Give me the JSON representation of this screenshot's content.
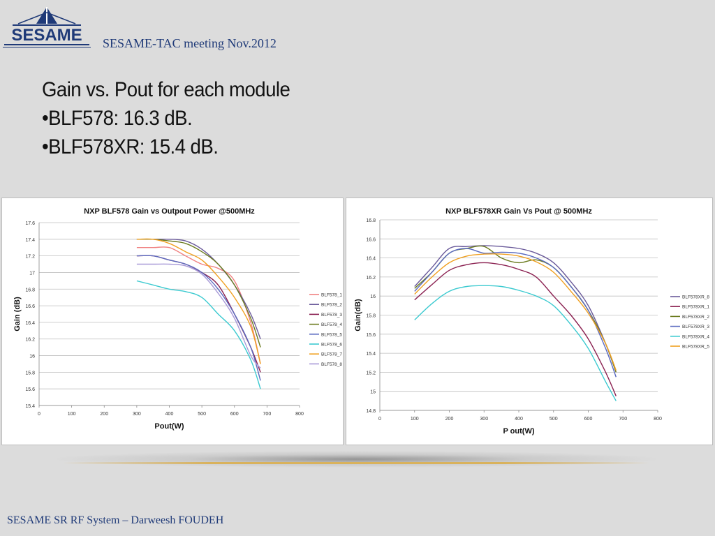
{
  "header": {
    "logo_text": "SESAME",
    "meeting": "SESAME-TAC meeting Nov.2012"
  },
  "bullets": [
    "Gain vs. Pout for each module",
    "•BLF578: 16.3 dB.",
    "•BLF578XR: 15.4 dB."
  ],
  "footer": "SESAME SR RF System – Darweesh FOUDEH",
  "chart_data": [
    {
      "type": "line",
      "title": "NXP BLF578  Gain vs Outpout Power  @500MHz",
      "xlabel": "Pout(W)",
      "ylabel": "Gain (dB)",
      "xlim": [
        0,
        800
      ],
      "ylim": [
        15.4,
        17.6
      ],
      "xticks": [
        0,
        100,
        200,
        300,
        400,
        500,
        600,
        700,
        800
      ],
      "yticks": [
        15.4,
        15.6,
        15.8,
        16,
        16.2,
        16.4,
        16.6,
        16.8,
        17,
        17.2,
        17.4,
        17.6
      ],
      "grid": "horizontal",
      "legend_position": "right",
      "series": [
        {
          "name": "BLF578_1",
          "color": "#f08080",
          "x": [
            300,
            350,
            400,
            450,
            500,
            550,
            600,
            650,
            680
          ],
          "y": [
            17.3,
            17.3,
            17.3,
            17.2,
            17.1,
            17.05,
            16.9,
            16.4,
            15.9
          ]
        },
        {
          "name": "BLF578_2",
          "color": "#6a5a9a",
          "x": [
            300,
            350,
            400,
            450,
            500,
            550,
            600,
            650,
            680
          ],
          "y": [
            17.4,
            17.4,
            17.4,
            17.38,
            17.28,
            17.1,
            16.85,
            16.5,
            16.2
          ]
        },
        {
          "name": "BLF578_3",
          "color": "#8b2252",
          "x": [
            300,
            350,
            400,
            450,
            500,
            550,
            600,
            650,
            680
          ],
          "y": [
            17.2,
            17.2,
            17.15,
            17.1,
            17.0,
            16.85,
            16.5,
            16.1,
            15.8
          ]
        },
        {
          "name": "BLF578_4",
          "color": "#6b7b1f",
          "x": [
            300,
            350,
            400,
            450,
            500,
            550,
            600,
            650,
            680
          ],
          "y": [
            17.4,
            17.4,
            17.38,
            17.35,
            17.25,
            17.1,
            16.85,
            16.45,
            16.1
          ]
        },
        {
          "name": "BLF578_5",
          "color": "#5a6ac0",
          "x": [
            300,
            350,
            400,
            450,
            500,
            550,
            600,
            650,
            680
          ],
          "y": [
            17.2,
            17.2,
            17.15,
            17.1,
            17.0,
            16.8,
            16.5,
            16.1,
            15.7
          ]
        },
        {
          "name": "BLF578_6",
          "color": "#3ccad0",
          "x": [
            300,
            350,
            400,
            450,
            500,
            550,
            600,
            650,
            680
          ],
          "y": [
            16.9,
            16.85,
            16.8,
            16.77,
            16.7,
            16.5,
            16.3,
            15.95,
            15.6
          ]
        },
        {
          "name": "BLF578_7",
          "color": "#f0a020",
          "x": [
            300,
            350,
            400,
            450,
            500,
            550,
            600,
            650,
            680
          ],
          "y": [
            17.4,
            17.4,
            17.35,
            17.25,
            17.15,
            16.95,
            16.7,
            16.35,
            15.9
          ]
        },
        {
          "name": "BLF578_8",
          "color": "#a89ad8",
          "x": [
            300,
            350,
            400,
            450,
            500,
            550,
            600,
            650,
            680
          ],
          "y": [
            17.1,
            17.1,
            17.1,
            17.08,
            16.98,
            16.75,
            16.45,
            16.0,
            15.85
          ]
        }
      ]
    },
    {
      "type": "line",
      "title": "NXP BLF578XR Gain Vs Pout @ 500MHz",
      "xlabel": "P out(W)",
      "ylabel": "Gain(dB)",
      "xlim": [
        0,
        800
      ],
      "ylim": [
        14.8,
        16.8
      ],
      "xticks": [
        0,
        100,
        200,
        300,
        400,
        500,
        600,
        700,
        800
      ],
      "yticks": [
        14.8,
        15,
        15.2,
        15.4,
        15.6,
        15.8,
        16,
        16.2,
        16.4,
        16.6,
        16.8
      ],
      "grid": "horizontal",
      "legend_position": "right",
      "series": [
        {
          "name": "BLF578XR_8",
          "color": "#6a5a9a",
          "x": [
            100,
            150,
            200,
            250,
            300,
            350,
            400,
            450,
            500,
            550,
            600,
            650,
            680
          ],
          "y": [
            16.1,
            16.3,
            16.5,
            16.52,
            16.53,
            16.52,
            16.5,
            16.45,
            16.35,
            16.15,
            15.9,
            15.5,
            15.2
          ]
        },
        {
          "name": "BLF578XR_1",
          "color": "#8b2252",
          "x": [
            100,
            150,
            200,
            250,
            300,
            350,
            400,
            450,
            500,
            550,
            600,
            650,
            680
          ],
          "y": [
            15.96,
            16.12,
            16.27,
            16.33,
            16.35,
            16.33,
            16.28,
            16.2,
            16.0,
            15.8,
            15.55,
            15.2,
            14.95
          ]
        },
        {
          "name": "BLF578XR_2",
          "color": "#6b7b1f",
          "x": [
            100,
            150,
            200,
            250,
            300,
            350,
            400,
            450,
            500,
            550,
            600,
            650,
            680
          ],
          "y": [
            16.08,
            16.25,
            16.45,
            16.5,
            16.52,
            16.4,
            16.35,
            16.38,
            16.3,
            16.1,
            15.85,
            15.5,
            15.2
          ]
        },
        {
          "name": "BLF578XR_3",
          "color": "#5a6ac0",
          "x": [
            100,
            150,
            200,
            250,
            300,
            350,
            400,
            450,
            500,
            550,
            600,
            650,
            680
          ],
          "y": [
            16.05,
            16.25,
            16.45,
            16.5,
            16.45,
            16.46,
            16.45,
            16.4,
            16.3,
            16.1,
            15.85,
            15.45,
            15.15
          ]
        },
        {
          "name": "BLF578XR_4",
          "color": "#3ccad0",
          "x": [
            100,
            150,
            200,
            250,
            300,
            350,
            400,
            450,
            500,
            550,
            600,
            650,
            680
          ],
          "y": [
            15.75,
            15.92,
            16.05,
            16.1,
            16.11,
            16.1,
            16.06,
            16.0,
            15.9,
            15.7,
            15.45,
            15.1,
            14.9
          ]
        },
        {
          "name": "BLF578XR_5",
          "color": "#f0a020",
          "x": [
            100,
            150,
            200,
            250,
            300,
            350,
            400,
            450,
            500,
            550,
            600,
            650,
            680
          ],
          "y": [
            16.02,
            16.2,
            16.35,
            16.42,
            16.44,
            16.44,
            16.42,
            16.36,
            16.25,
            16.05,
            15.82,
            15.5,
            15.22
          ]
        }
      ]
    }
  ]
}
